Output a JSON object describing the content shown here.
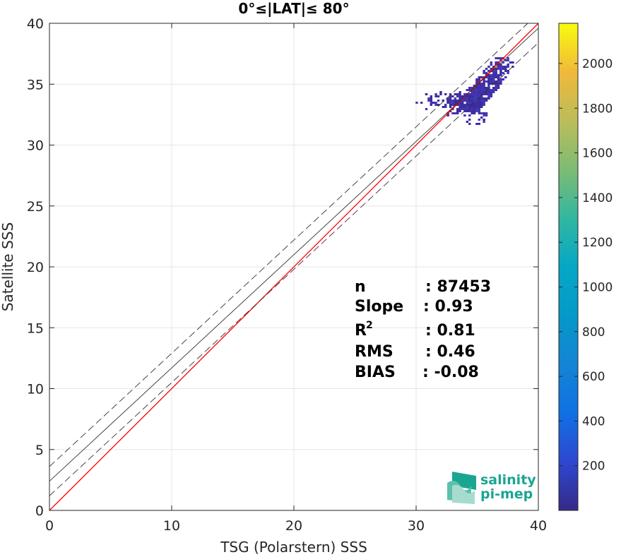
{
  "chart_data": {
    "type": "heatmap",
    "title": "0°≤|LAT|≤ 80°",
    "xlabel": "TSG (Polarstern) SSS",
    "ylabel": "Satellite SSS",
    "xlim": [
      0,
      40
    ],
    "ylim": [
      0,
      40
    ],
    "xticks": [
      0,
      10,
      20,
      30,
      40
    ],
    "yticks": [
      0,
      5,
      10,
      15,
      20,
      25,
      30,
      35,
      40
    ],
    "grid": true,
    "colorbar": {
      "range": [
        0,
        2180
      ],
      "ticks": [
        200,
        400,
        600,
        800,
        1000,
        1200,
        1400,
        1600,
        1800,
        2000
      ],
      "colormap": "parula"
    },
    "lines": [
      {
        "kind": "identity",
        "color": "#ff0000",
        "slope": 1.0,
        "intercept": 0.0
      },
      {
        "kind": "regression",
        "color": "#333333",
        "slope": 0.93,
        "intercept": 2.4
      },
      {
        "kind": "regression-plus-2sigma",
        "color": "#333333",
        "dash": true,
        "slope": 0.93,
        "intercept": 3.6
      },
      {
        "kind": "regression-minus-2sigma",
        "color": "#333333",
        "dash": true,
        "slope": 0.93,
        "intercept": 1.2
      }
    ],
    "density_clusters": [
      {
        "x": 34.4,
        "y": 33.6,
        "count": 180
      },
      {
        "x": 35.1,
        "y": 34.3,
        "count": 140
      },
      {
        "x": 35.8,
        "y": 35.2,
        "count": 90
      },
      {
        "x": 36.4,
        "y": 36.0,
        "count": 70
      },
      {
        "x": 36.9,
        "y": 36.6,
        "count": 40
      },
      {
        "x": 33.5,
        "y": 33.7,
        "count": 60
      },
      {
        "x": 33.0,
        "y": 33.2,
        "count": 25
      },
      {
        "x": 32.0,
        "y": 33.8,
        "count": 20
      },
      {
        "x": 31.0,
        "y": 33.6,
        "count": 12
      },
      {
        "x": 34.8,
        "y": 32.4,
        "count": 30
      }
    ],
    "stats": [
      {
        "label": "n",
        "value": ": 87453"
      },
      {
        "label": "Slope",
        "value": ": 0.93"
      },
      {
        "label": "R",
        "superscript": "2",
        "value": ": 0.81"
      },
      {
        "label": "RMS",
        "value": ": 0.46"
      },
      {
        "label": "BIAS",
        "value": ": -0.08"
      }
    ]
  },
  "logo": {
    "line1": "salinity",
    "line2": "pi-mep"
  }
}
